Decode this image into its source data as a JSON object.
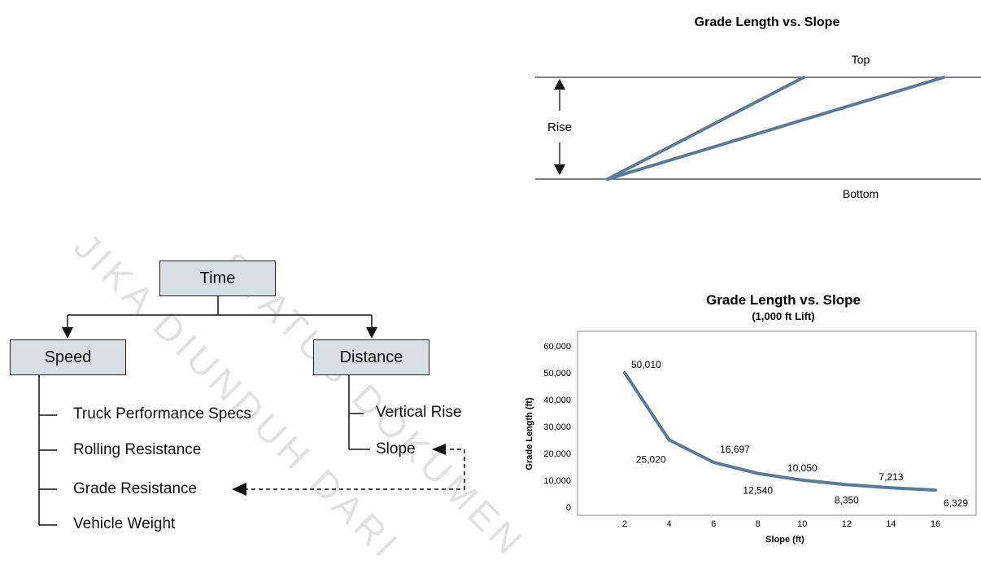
{
  "top_diagram": {
    "title": "Grade Length vs. Slope",
    "top_label": "Top",
    "bottom_label": "Bottom",
    "rise_label": "Rise"
  },
  "tree": {
    "root": "Time",
    "left": "Speed",
    "right": "Distance",
    "left_items": [
      "Truck Performance Specs",
      "Rolling Resistance",
      "Grade Resistance",
      "Vehicle Weight"
    ],
    "right_items": [
      "Vertical Rise",
      "Slope"
    ]
  },
  "watermark": [
    "JIKA DIUNDUH DARI",
    "STATUS DOKUMEN"
  ],
  "chart_data": {
    "type": "line",
    "title": "Grade Length vs. Slope",
    "subtitle": "(1,000 ft Lift)",
    "xlabel": "Slope (ft)",
    "ylabel": "Grade Length (ft)",
    "x_ticks": [
      2,
      4,
      6,
      8,
      10,
      12,
      14,
      16
    ],
    "y_ticks": [
      "0",
      "10,000",
      "20,000",
      "30,000",
      "40,000",
      "50,000",
      "60,000"
    ],
    "xlim": [
      0,
      17.5
    ],
    "ylim": [
      0,
      60000
    ],
    "grid": false,
    "series": [
      {
        "x": [
          2,
          4,
          6,
          8,
          10,
          12,
          14,
          16
        ],
        "values": [
          50010,
          25020,
          16697,
          12540,
          10050,
          8350,
          7213,
          6329
        ],
        "labels": [
          "50,010",
          "25,020",
          "16,697",
          "12,540",
          "10,050",
          "8,350",
          "7,213",
          "6,329"
        ]
      }
    ],
    "line_color": "#5b7a99"
  }
}
